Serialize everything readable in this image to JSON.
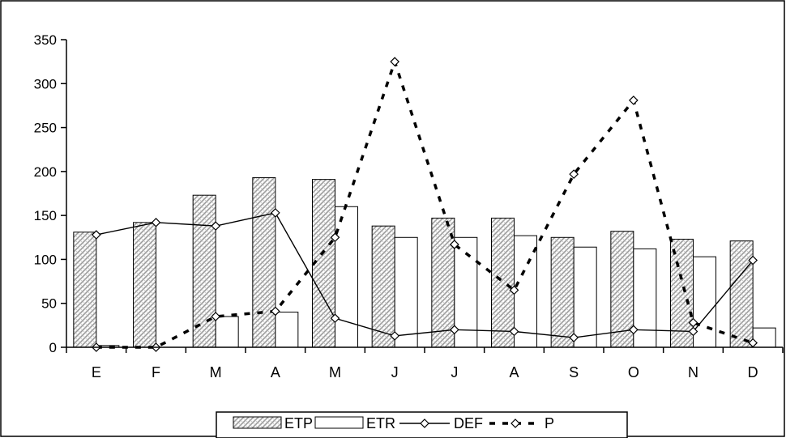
{
  "chart_data": {
    "type": "bar",
    "categories": [
      "E",
      "F",
      "M",
      "A",
      "M",
      "J",
      "J",
      "A",
      "S",
      "O",
      "N",
      "D"
    ],
    "ylim": [
      0,
      350
    ],
    "yticks": [
      0,
      50,
      100,
      150,
      200,
      250,
      300,
      350
    ],
    "series": [
      {
        "name": "ETP",
        "kind": "bar",
        "style": "hatched",
        "values": [
          131,
          142,
          173,
          193,
          191,
          138,
          147,
          147,
          125,
          132,
          123,
          121
        ]
      },
      {
        "name": "ETR",
        "kind": "bar",
        "style": "white",
        "values": [
          2,
          0,
          35,
          40,
          160,
          125,
          125,
          127,
          114,
          112,
          103,
          22
        ]
      },
      {
        "name": "DEF",
        "kind": "line",
        "style": "solid",
        "marker": "diamond",
        "values": [
          128,
          142,
          138,
          153,
          33,
          13,
          20,
          18,
          11,
          20,
          18,
          99
        ]
      },
      {
        "name": "P",
        "kind": "line",
        "style": "dashed",
        "marker": "diamond",
        "values": [
          0,
          0,
          35,
          41,
          125,
          325,
          117,
          65,
          197,
          281,
          28,
          5
        ]
      }
    ],
    "grid": false,
    "legend": "bottom",
    "colors": {
      "bar_hatch": "#9a9a9a",
      "outline": "#000000",
      "background": "#ffffff"
    }
  }
}
